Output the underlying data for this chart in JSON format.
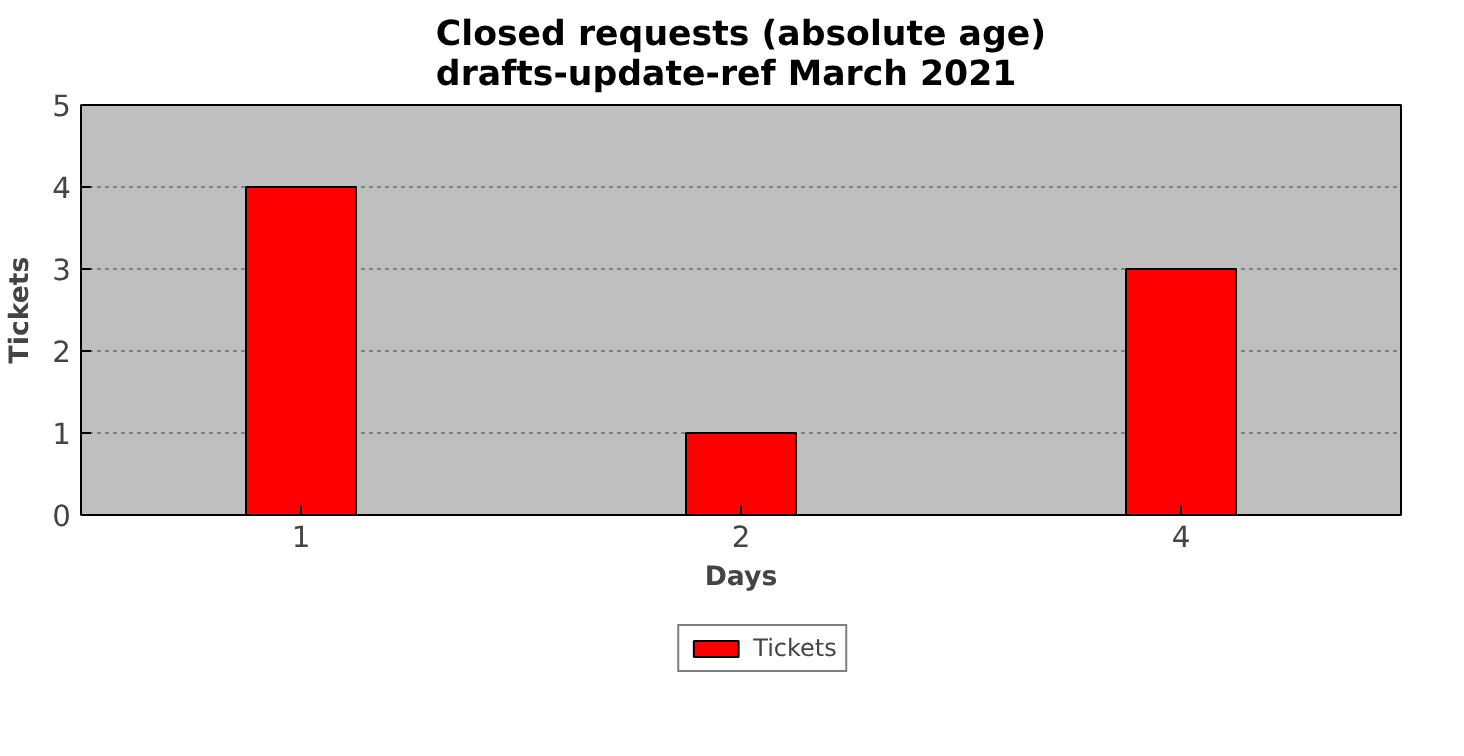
{
  "chart_data": {
    "type": "bar",
    "title": "Closed requests (absolute age)\ndrafts-update-ref March 2021",
    "xlabel": "Days",
    "ylabel": "Tickets",
    "categories": [
      "1",
      "2",
      "4"
    ],
    "series": [
      {
        "name": "Tickets",
        "color": "#ff0000",
        "values": [
          4,
          1,
          3
        ]
      }
    ],
    "ylim": [
      0,
      5
    ],
    "yticks": [
      0,
      1,
      2,
      3,
      4,
      5
    ],
    "grid": "y",
    "legend": "bottom"
  }
}
